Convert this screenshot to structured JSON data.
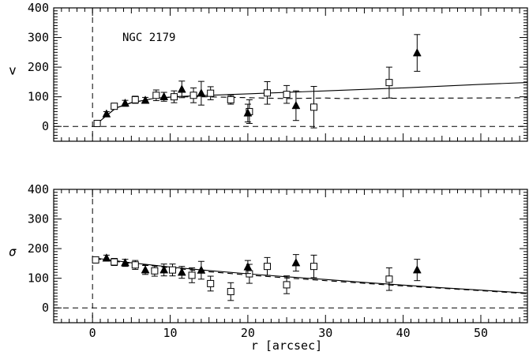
{
  "chart_data": [
    {
      "type": "scatter",
      "panel": "top",
      "title": "",
      "annotation": "NGC 2179",
      "xlabel": "",
      "ylabel": "v",
      "xlim": [
        -5,
        56
      ],
      "ylim": [
        -50,
        400
      ],
      "xticks": [
        0,
        10,
        20,
        30,
        40,
        50
      ],
      "yticks": [
        0,
        100,
        200,
        300,
        400
      ],
      "series": [
        {
          "marker": "open-square",
          "points": [
            {
              "x": 0.6,
              "y": 10,
              "err": 8
            },
            {
              "x": 2.8,
              "y": 68,
              "err": 10
            },
            {
              "x": 5.5,
              "y": 90,
              "err": 12
            },
            {
              "x": 8.2,
              "y": 105,
              "err": 18
            },
            {
              "x": 10.5,
              "y": 100,
              "err": 20
            },
            {
              "x": 13.0,
              "y": 105,
              "err": 25
            },
            {
              "x": 15.2,
              "y": 112,
              "err": 22
            },
            {
              "x": 17.8,
              "y": 90,
              "err": 15
            },
            {
              "x": 20.2,
              "y": 50,
              "err": 40
            },
            {
              "x": 22.5,
              "y": 113,
              "err": 38
            },
            {
              "x": 25.0,
              "y": 108,
              "err": 30
            },
            {
              "x": 28.5,
              "y": 65,
              "err": 70
            },
            {
              "x": 38.2,
              "y": 148,
              "err": 52
            }
          ]
        },
        {
          "marker": "filled-triangle",
          "points": [
            {
              "x": 1.8,
              "y": 42,
              "err": 8
            },
            {
              "x": 4.2,
              "y": 78,
              "err": 10
            },
            {
              "x": 6.8,
              "y": 88,
              "err": 10
            },
            {
              "x": 9.2,
              "y": 100,
              "err": 15
            },
            {
              "x": 11.5,
              "y": 125,
              "err": 28
            },
            {
              "x": 14.0,
              "y": 112,
              "err": 40
            },
            {
              "x": 20.0,
              "y": 45,
              "err": 30
            },
            {
              "x": 26.2,
              "y": 70,
              "err": 50
            },
            {
              "x": 41.8,
              "y": 248,
              "err": 62
            }
          ]
        }
      ],
      "curves": [
        {
          "style": "solid",
          "points": [
            [
              0.4,
              5
            ],
            [
              1.5,
              30
            ],
            [
              3,
              62
            ],
            [
              5,
              80
            ],
            [
              8,
              95
            ],
            [
              11,
              101
            ],
            [
              15,
              105
            ],
            [
              20,
              110
            ],
            [
              30,
              120
            ],
            [
              40,
              130
            ],
            [
              50,
              142
            ],
            [
              56,
              148
            ]
          ]
        },
        {
          "style": "dashed",
          "points": [
            [
              0.4,
              5
            ],
            [
              1.5,
              30
            ],
            [
              3,
              62
            ],
            [
              5,
              80
            ],
            [
              8,
              95
            ],
            [
              11,
              100
            ],
            [
              15,
              100
            ],
            [
              20,
              97
            ],
            [
              25,
              94
            ],
            [
              30,
              96
            ],
            [
              32,
              94
            ],
            [
              40,
              95
            ],
            [
              50,
              96
            ],
            [
              56,
              97
            ]
          ]
        }
      ],
      "zero_line": {
        "y": 0,
        "style": "dashed"
      },
      "center_line": {
        "x": 0,
        "style": "dashed"
      }
    },
    {
      "type": "scatter",
      "panel": "bottom",
      "title": "",
      "xlabel": "r [arcsec]",
      "ylabel": "σ",
      "xlim": [
        -5,
        56
      ],
      "ylim": [
        -50,
        400
      ],
      "xticks": [
        0,
        10,
        20,
        30,
        40,
        50
      ],
      "yticks": [
        0,
        100,
        200,
        300,
        400
      ],
      "series": [
        {
          "marker": "open-square",
          "points": [
            {
              "x": 0.4,
              "y": 162,
              "err": 10
            },
            {
              "x": 2.8,
              "y": 155,
              "err": 12
            },
            {
              "x": 5.5,
              "y": 145,
              "err": 15
            },
            {
              "x": 8.0,
              "y": 125,
              "err": 18
            },
            {
              "x": 10.3,
              "y": 128,
              "err": 20
            },
            {
              "x": 12.8,
              "y": 110,
              "err": 25
            },
            {
              "x": 15.2,
              "y": 82,
              "err": 25
            },
            {
              "x": 17.8,
              "y": 55,
              "err": 30
            },
            {
              "x": 20.2,
              "y": 115,
              "err": 32
            },
            {
              "x": 22.5,
              "y": 140,
              "err": 30
            },
            {
              "x": 25.0,
              "y": 78,
              "err": 30
            },
            {
              "x": 28.5,
              "y": 140,
              "err": 38
            },
            {
              "x": 38.2,
              "y": 97,
              "err": 38
            }
          ]
        },
        {
          "marker": "filled-triangle",
          "points": [
            {
              "x": 1.8,
              "y": 168,
              "err": 10
            },
            {
              "x": 4.2,
              "y": 152,
              "err": 12
            },
            {
              "x": 6.8,
              "y": 128,
              "err": 15
            },
            {
              "x": 9.2,
              "y": 128,
              "err": 20
            },
            {
              "x": 11.5,
              "y": 120,
              "err": 20
            },
            {
              "x": 14.0,
              "y": 127,
              "err": 30
            },
            {
              "x": 20.0,
              "y": 138,
              "err": 22
            },
            {
              "x": 26.2,
              "y": 152,
              "err": 28
            },
            {
              "x": 41.8,
              "y": 128,
              "err": 36
            }
          ]
        }
      ],
      "curves": [
        {
          "style": "solid",
          "points": [
            [
              0.4,
              168
            ],
            [
              5,
              152
            ],
            [
              10,
              138
            ],
            [
              15,
              126
            ],
            [
              20,
              115
            ],
            [
              25,
              105
            ],
            [
              30,
              96
            ],
            [
              35,
              86
            ],
            [
              40,
              77
            ],
            [
              45,
              68
            ],
            [
              50,
              60
            ],
            [
              56,
              50
            ]
          ]
        },
        {
          "style": "dashed",
          "points": [
            [
              0.4,
              166
            ],
            [
              5,
              150
            ],
            [
              10,
              135
            ],
            [
              15,
              122
            ],
            [
              20,
              111
            ],
            [
              25,
              101
            ],
            [
              30,
              92
            ],
            [
              35,
              83
            ],
            [
              40,
              74
            ],
            [
              45,
              66
            ],
            [
              50,
              58
            ],
            [
              56,
              48
            ]
          ]
        }
      ],
      "zero_line": {
        "y": 0,
        "style": "dashed"
      },
      "center_line": {
        "x": 0,
        "style": "dashed"
      }
    }
  ]
}
